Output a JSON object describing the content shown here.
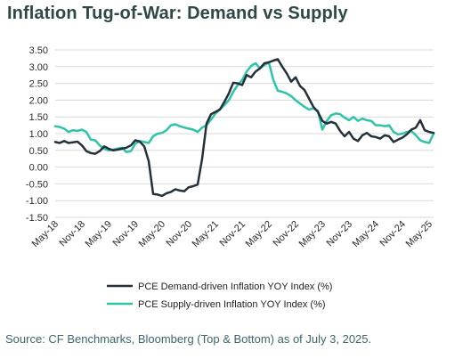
{
  "title": "Inflation Tug-of-War: Demand vs Supply",
  "footer": "Source: CF Benchmarks, Bloomberg (Top & Bottom) as of July 3, 2025.",
  "colors": {
    "demand": "#24303b",
    "supply": "#2ec4a6",
    "grid": "#d9d9d9",
    "title": "#2f4747",
    "footer": "#3b6670"
  },
  "chart_data": {
    "type": "line",
    "title": "Inflation Tug-of-War: Demand vs Supply",
    "xlabel": "",
    "ylabel": "",
    "ylim": [
      -1.5,
      3.5
    ],
    "yticks": [
      3.5,
      3.0,
      2.5,
      2.0,
      1.5,
      1.0,
      0.5,
      0.0,
      -0.5,
      -1.0,
      -1.5
    ],
    "ytick_labels": [
      "3.50",
      "3.00",
      "2.50",
      "2.00",
      "1.50",
      "1.00",
      "0.50",
      "0.00",
      "-0.50",
      "-1.00",
      "-1.50"
    ],
    "xticks": [
      "May-18",
      "Nov-18",
      "May-19",
      "Nov-19",
      "May-20",
      "Nov-20",
      "May-21",
      "Nov-21",
      "May-22",
      "Nov-22",
      "May-23",
      "Nov-23",
      "May-24",
      "Nov-24",
      "May-25"
    ],
    "grid": "horizontal",
    "legend_position": "bottom",
    "series": [
      {
        "name": "PCE Demand-driven Inflation YOY Index (%)",
        "color": "#24303b",
        "points": [
          [
            "2018-05",
            0.75
          ],
          [
            "2018-06",
            0.72
          ],
          [
            "2018-07",
            0.78
          ],
          [
            "2018-08",
            0.72
          ],
          [
            "2018-09",
            0.74
          ],
          [
            "2018-10",
            0.76
          ],
          [
            "2018-11",
            0.65
          ],
          [
            "2018-12",
            0.48
          ],
          [
            "2019-01",
            0.42
          ],
          [
            "2019-02",
            0.4
          ],
          [
            "2019-03",
            0.48
          ],
          [
            "2019-04",
            0.62
          ],
          [
            "2019-05",
            0.55
          ],
          [
            "2019-06",
            0.5
          ],
          [
            "2019-07",
            0.52
          ],
          [
            "2019-08",
            0.55
          ],
          [
            "2019-09",
            0.58
          ],
          [
            "2019-10",
            0.65
          ],
          [
            "2019-11",
            0.8
          ],
          [
            "2019-12",
            0.76
          ],
          [
            "2020-01",
            0.62
          ],
          [
            "2020-02",
            0.18
          ],
          [
            "2020-03",
            -0.8
          ],
          [
            "2020-04",
            -0.82
          ],
          [
            "2020-05",
            -0.86
          ],
          [
            "2020-06",
            -0.78
          ],
          [
            "2020-07",
            -0.74
          ],
          [
            "2020-08",
            -0.66
          ],
          [
            "2020-09",
            -0.7
          ],
          [
            "2020-10",
            -0.72
          ],
          [
            "2020-11",
            -0.6
          ],
          [
            "2020-12",
            -0.57
          ],
          [
            "2021-01",
            -0.52
          ],
          [
            "2021-02",
            0.25
          ],
          [
            "2021-03",
            1.3
          ],
          [
            "2021-04",
            1.58
          ],
          [
            "2021-05",
            1.65
          ],
          [
            "2021-06",
            1.72
          ],
          [
            "2021-07",
            1.95
          ],
          [
            "2021-08",
            2.2
          ],
          [
            "2021-09",
            2.52
          ],
          [
            "2021-10",
            2.5
          ],
          [
            "2021-11",
            2.45
          ],
          [
            "2021-12",
            2.75
          ],
          [
            "2022-01",
            2.68
          ],
          [
            "2022-02",
            2.85
          ],
          [
            "2022-03",
            2.95
          ],
          [
            "2022-04",
            3.1
          ],
          [
            "2022-05",
            3.13
          ],
          [
            "2022-06",
            3.18
          ],
          [
            "2022-07",
            3.22
          ],
          [
            "2022-08",
            3.0
          ],
          [
            "2022-09",
            2.8
          ],
          [
            "2022-10",
            2.55
          ],
          [
            "2022-11",
            2.68
          ],
          [
            "2022-12",
            2.42
          ],
          [
            "2023-01",
            2.3
          ],
          [
            "2023-02",
            2.05
          ],
          [
            "2023-03",
            1.8
          ],
          [
            "2023-04",
            1.65
          ],
          [
            "2023-05",
            1.38
          ],
          [
            "2023-06",
            1.3
          ],
          [
            "2023-07",
            1.35
          ],
          [
            "2023-08",
            1.3
          ],
          [
            "2023-09",
            1.08
          ],
          [
            "2023-10",
            0.92
          ],
          [
            "2023-11",
            1.05
          ],
          [
            "2023-12",
            0.85
          ],
          [
            "2024-01",
            0.78
          ],
          [
            "2024-02",
            0.95
          ],
          [
            "2024-03",
            1.02
          ],
          [
            "2024-04",
            0.92
          ],
          [
            "2024-05",
            0.9
          ],
          [
            "2024-06",
            0.85
          ],
          [
            "2024-07",
            0.95
          ],
          [
            "2024-08",
            0.92
          ],
          [
            "2024-09",
            0.75
          ],
          [
            "2024-10",
            0.82
          ],
          [
            "2024-11",
            0.88
          ],
          [
            "2024-12",
            0.98
          ],
          [
            "2025-01",
            1.12
          ],
          [
            "2025-02",
            1.18
          ],
          [
            "2025-03",
            1.4
          ],
          [
            "2025-04",
            1.1
          ],
          [
            "2025-05",
            1.05
          ],
          [
            "2025-06",
            1.02
          ]
        ]
      },
      {
        "name": "PCE Supply-driven Inflation YOY Index (%)",
        "color": "#2ec4a6",
        "points": [
          [
            "2018-05",
            1.22
          ],
          [
            "2018-06",
            1.2
          ],
          [
            "2018-07",
            1.15
          ],
          [
            "2018-08",
            1.05
          ],
          [
            "2018-09",
            1.1
          ],
          [
            "2018-10",
            1.08
          ],
          [
            "2018-11",
            1.12
          ],
          [
            "2018-12",
            1.05
          ],
          [
            "2019-01",
            0.82
          ],
          [
            "2019-02",
            0.8
          ],
          [
            "2019-03",
            0.65
          ],
          [
            "2019-04",
            0.55
          ],
          [
            "2019-05",
            0.5
          ],
          [
            "2019-06",
            0.52
          ],
          [
            "2019-07",
            0.55
          ],
          [
            "2019-08",
            0.58
          ],
          [
            "2019-09",
            0.45
          ],
          [
            "2019-10",
            0.48
          ],
          [
            "2019-11",
            0.7
          ],
          [
            "2019-12",
            0.78
          ],
          [
            "2020-01",
            0.75
          ],
          [
            "2020-02",
            0.72
          ],
          [
            "2020-03",
            0.92
          ],
          [
            "2020-04",
            1.0
          ],
          [
            "2020-05",
            1.02
          ],
          [
            "2020-06",
            1.1
          ],
          [
            "2020-07",
            1.25
          ],
          [
            "2020-08",
            1.28
          ],
          [
            "2020-09",
            1.22
          ],
          [
            "2020-10",
            1.18
          ],
          [
            "2020-11",
            1.15
          ],
          [
            "2020-12",
            1.12
          ],
          [
            "2021-01",
            1.05
          ],
          [
            "2021-02",
            1.18
          ],
          [
            "2021-03",
            1.25
          ],
          [
            "2021-04",
            1.42
          ],
          [
            "2021-05",
            1.6
          ],
          [
            "2021-06",
            1.72
          ],
          [
            "2021-07",
            1.85
          ],
          [
            "2021-08",
            2.0
          ],
          [
            "2021-09",
            2.25
          ],
          [
            "2021-10",
            2.45
          ],
          [
            "2021-11",
            2.6
          ],
          [
            "2021-12",
            2.85
          ],
          [
            "2022-01",
            3.02
          ],
          [
            "2022-02",
            3.1
          ],
          [
            "2022-03",
            2.95
          ],
          [
            "2022-04",
            3.05
          ],
          [
            "2022-05",
            3.12
          ],
          [
            "2022-06",
            2.6
          ],
          [
            "2022-07",
            2.28
          ],
          [
            "2022-08",
            2.25
          ],
          [
            "2022-09",
            2.2
          ],
          [
            "2022-10",
            2.12
          ],
          [
            "2022-11",
            2.0
          ],
          [
            "2022-12",
            1.9
          ],
          [
            "2023-01",
            1.8
          ],
          [
            "2023-02",
            1.72
          ],
          [
            "2023-03",
            1.75
          ],
          [
            "2023-04",
            1.68
          ],
          [
            "2023-05",
            1.12
          ],
          [
            "2023-06",
            1.38
          ],
          [
            "2023-07",
            1.55
          ],
          [
            "2023-08",
            1.6
          ],
          [
            "2023-09",
            1.58
          ],
          [
            "2023-10",
            1.48
          ],
          [
            "2023-11",
            1.4
          ],
          [
            "2023-12",
            1.5
          ],
          [
            "2024-01",
            1.38
          ],
          [
            "2024-02",
            1.45
          ],
          [
            "2024-03",
            1.4
          ],
          [
            "2024-04",
            1.38
          ],
          [
            "2024-05",
            1.25
          ],
          [
            "2024-06",
            1.25
          ],
          [
            "2024-07",
            1.22
          ],
          [
            "2024-08",
            1.25
          ],
          [
            "2024-09",
            1.05
          ],
          [
            "2024-10",
            0.98
          ],
          [
            "2024-11",
            1.0
          ],
          [
            "2024-12",
            1.05
          ],
          [
            "2025-01",
            1.08
          ],
          [
            "2025-02",
            0.95
          ],
          [
            "2025-03",
            0.8
          ],
          [
            "2025-04",
            0.75
          ],
          [
            "2025-05",
            0.72
          ],
          [
            "2025-06",
            1.0
          ]
        ]
      }
    ]
  }
}
